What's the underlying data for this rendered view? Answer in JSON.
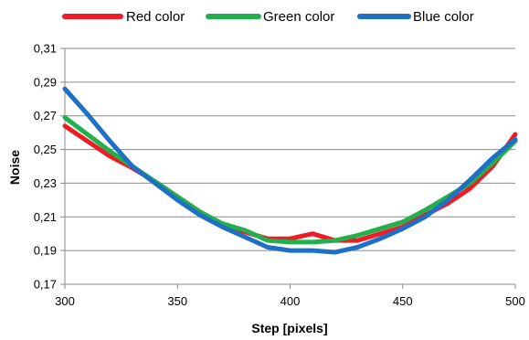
{
  "chart_data": {
    "type": "line",
    "title": "",
    "xlabel": "Step [pixels]",
    "ylabel": "Noise",
    "xlim": [
      300,
      500
    ],
    "ylim": [
      0.17,
      0.31
    ],
    "x_ticks": [
      300,
      350,
      400,
      450,
      500
    ],
    "y_ticks": [
      0.17,
      0.19,
      0.21,
      0.23,
      0.25,
      0.27,
      0.29,
      0.31
    ],
    "x_tick_labels": [
      "300",
      "350",
      "400",
      "450",
      "500"
    ],
    "y_tick_labels": [
      "0,17",
      "0,19",
      "0,21",
      "0,23",
      "0,25",
      "0,27",
      "0,29",
      "0,31"
    ],
    "grid": "horizontal",
    "legend_position": "top",
    "series": [
      {
        "name": "Red color",
        "color": "#ee1c24",
        "points": [
          [
            300,
            0.264
          ],
          [
            310,
            0.255
          ],
          [
            320,
            0.246
          ],
          [
            330,
            0.239
          ],
          [
            340,
            0.231
          ],
          [
            350,
            0.222
          ],
          [
            360,
            0.213
          ],
          [
            370,
            0.205
          ],
          [
            380,
            0.201
          ],
          [
            390,
            0.197
          ],
          [
            400,
            0.197
          ],
          [
            410,
            0.2
          ],
          [
            420,
            0.196
          ],
          [
            430,
            0.196
          ],
          [
            440,
            0.2
          ],
          [
            450,
            0.204
          ],
          [
            460,
            0.211
          ],
          [
            470,
            0.218
          ],
          [
            480,
            0.227
          ],
          [
            490,
            0.24
          ],
          [
            500,
            0.259
          ]
        ]
      },
      {
        "name": "Green color",
        "color": "#22b04c",
        "points": [
          [
            300,
            0.269
          ],
          [
            310,
            0.259
          ],
          [
            320,
            0.249
          ],
          [
            330,
            0.24
          ],
          [
            340,
            0.231
          ],
          [
            350,
            0.222
          ],
          [
            360,
            0.213
          ],
          [
            370,
            0.206
          ],
          [
            380,
            0.202
          ],
          [
            390,
            0.196
          ],
          [
            400,
            0.195
          ],
          [
            410,
            0.195
          ],
          [
            420,
            0.196
          ],
          [
            430,
            0.199
          ],
          [
            440,
            0.203
          ],
          [
            450,
            0.207
          ],
          [
            460,
            0.214
          ],
          [
            470,
            0.222
          ],
          [
            480,
            0.23
          ],
          [
            490,
            0.242
          ],
          [
            500,
            0.255
          ]
        ]
      },
      {
        "name": "Blue color",
        "color": "#1f6fc5",
        "points": [
          [
            300,
            0.286
          ],
          [
            310,
            0.271
          ],
          [
            320,
            0.255
          ],
          [
            330,
            0.24
          ],
          [
            340,
            0.23
          ],
          [
            350,
            0.22
          ],
          [
            360,
            0.211
          ],
          [
            370,
            0.204
          ],
          [
            380,
            0.198
          ],
          [
            390,
            0.192
          ],
          [
            400,
            0.19
          ],
          [
            410,
            0.19
          ],
          [
            420,
            0.189
          ],
          [
            430,
            0.192
          ],
          [
            440,
            0.197
          ],
          [
            450,
            0.203
          ],
          [
            460,
            0.21
          ],
          [
            470,
            0.22
          ],
          [
            480,
            0.232
          ],
          [
            490,
            0.245
          ],
          [
            500,
            0.256
          ]
        ]
      }
    ]
  }
}
